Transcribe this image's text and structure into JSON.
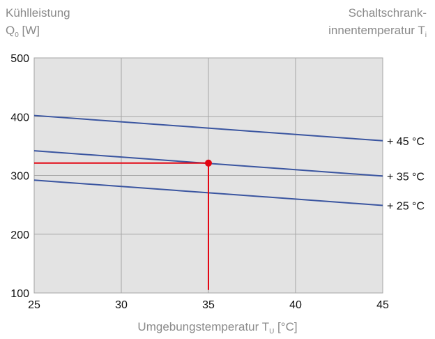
{
  "colors": {
    "plot_bg": "#e3e3e3",
    "grid": "#a6a6a6",
    "line": "#3a55a0",
    "marker": "#e30613",
    "label_gray": "#8a8a8a"
  },
  "labels": {
    "y_title_line1": "Kühlleistung",
    "y_title_q": "Q",
    "y_title_q_sub": "0",
    "y_title_unit": " [W]",
    "right_title_line1": "Schaltschrank-",
    "right_title_line2": "innentemperatur T",
    "right_title_sub": "i",
    "x_title_main": "Umgebungstemperatur T",
    "x_title_sub": "U",
    "x_title_unit": " [°C]"
  },
  "chart_data": {
    "type": "line",
    "title": "",
    "ylabel": "Kühlleistung Q0 [W]",
    "xlabel": "Umgebungstemperatur TU [°C]",
    "secondary_label": "Schaltschrankinnentemperatur Ti",
    "xlim": [
      25,
      45
    ],
    "ylim": [
      100,
      500
    ],
    "x_ticks": [
      25,
      30,
      35,
      40,
      45
    ],
    "y_ticks": [
      100,
      200,
      300,
      400,
      500
    ],
    "x_tick_labels": [
      "25",
      "30",
      "35",
      "40",
      "45"
    ],
    "y_tick_labels": [
      "100",
      "200",
      "300",
      "400",
      "500"
    ],
    "grid": true,
    "series": [
      {
        "name": "+ 45 °C",
        "x": [
          25,
          45
        ],
        "y": [
          402,
          359
        ]
      },
      {
        "name": "+ 35 °C",
        "x": [
          25,
          45
        ],
        "y": [
          342,
          299
        ]
      },
      {
        "name": "+ 25 °C",
        "x": [
          25,
          45
        ],
        "y": [
          292,
          249
        ]
      }
    ],
    "marker": {
      "x": 35,
      "y": 321,
      "guide_x_from": 25,
      "guide_y_to": 105
    }
  }
}
